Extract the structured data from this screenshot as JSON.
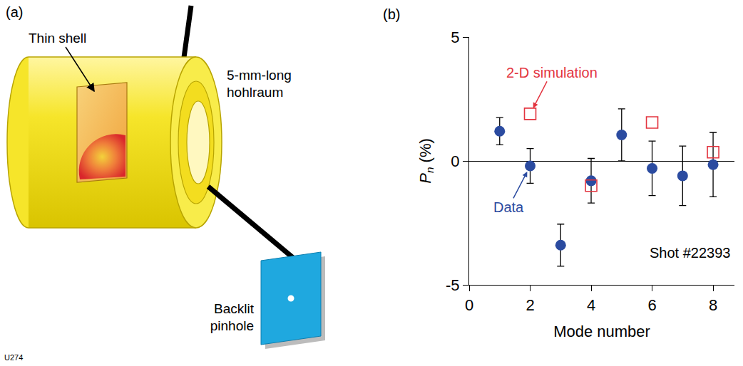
{
  "panel_labels": [
    "(a)",
    "(b)"
  ],
  "figure_id": "U274",
  "diagram": {
    "thin_shell": "Thin shell",
    "hohlraum": [
      "5-mm-long",
      "hohlraum"
    ],
    "pinhole": [
      "Backlit",
      "pinhole"
    ]
  },
  "chart_data": {
    "type": "scatter",
    "xlabel": "Mode number",
    "ylabel": {
      "symbol": "P",
      "subscript": "n",
      "unit": "(%)"
    },
    "xlim": [
      0,
      8.7
    ],
    "xticks": [
      0,
      2,
      4,
      6,
      8
    ],
    "ylim": [
      -5,
      5
    ],
    "yticks": [
      -5,
      0,
      5
    ],
    "grid": false,
    "legend": false,
    "series": [
      {
        "name": "Data",
        "color": "#2b4ba0",
        "marker": "circle",
        "x": [
          1,
          2,
          3,
          4,
          5,
          6,
          7,
          8
        ],
        "values": [
          1.2,
          -0.2,
          -3.4,
          -0.8,
          1.05,
          -0.3,
          -0.6,
          -0.15
        ],
        "error": [
          0.55,
          0.7,
          0.85,
          0.9,
          1.05,
          1.1,
          1.2,
          1.3
        ]
      },
      {
        "name": "2-D simulation",
        "color": "#e3343f",
        "marker": "square-open",
        "x": [
          2,
          4,
          6,
          8
        ],
        "values": [
          1.9,
          -1.0,
          1.55,
          0.35
        ]
      }
    ],
    "annotations": [
      "Shot #22393"
    ]
  }
}
